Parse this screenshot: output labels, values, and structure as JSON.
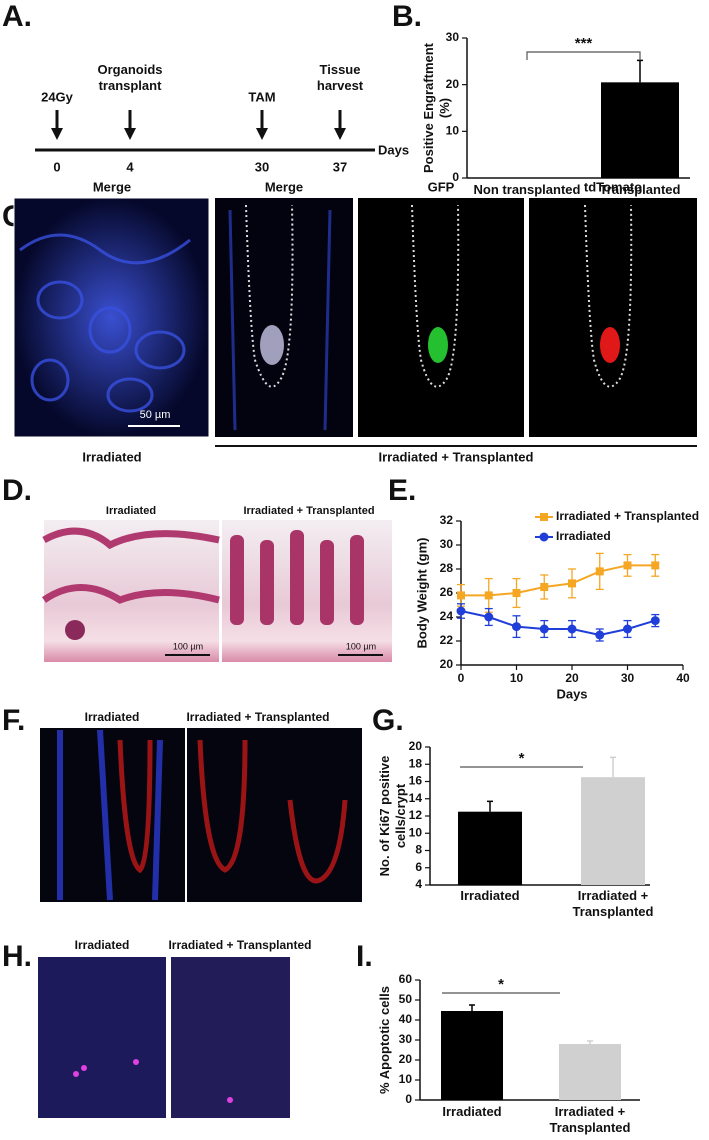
{
  "panel_labels": [
    "A.",
    "B.",
    "C.",
    "D.",
    "E.",
    "F.",
    "G.",
    "H.",
    "I."
  ],
  "timeline": {
    "events": [
      {
        "label": "24Gy",
        "day": 0
      },
      {
        "label": "Organoids transplant",
        "day": 4
      },
      {
        "label": "TAM",
        "day": 30
      },
      {
        "label": "Tissue harvest",
        "day": 37
      }
    ],
    "axis_label": "Days"
  },
  "panel_c": {
    "titles": [
      "Merge",
      "Merge",
      "GFP",
      "tdTomato"
    ],
    "scale_bar": "50 µm",
    "groups": [
      "Irradiated",
      "Irradiated + Transplanted"
    ]
  },
  "panel_d": {
    "titles": [
      "Irradiated",
      "Irradiated + Transplanted"
    ],
    "scale_bars": [
      "100 µm",
      "100 µm"
    ]
  },
  "panel_f": {
    "titles": [
      "Irradiated",
      "Irradiated + Transplanted"
    ]
  },
  "panel_h": {
    "titles": [
      "Irradiated",
      "Irradiated + Transplanted"
    ]
  },
  "chart_data": [
    {
      "type": "bar",
      "ylabel": "Positive Engraftment (%)",
      "categories": [
        "Non transplanted",
        "Transplanted"
      ],
      "values": [
        0,
        20.5
      ],
      "errors": [
        null,
        4.7
      ],
      "colors": [
        "#000000",
        "#000000"
      ],
      "ylim": [
        0,
        30
      ],
      "yticks": [
        0,
        10,
        20,
        30
      ],
      "annotation": "***"
    },
    {
      "type": "line",
      "ylabel": "Body Weight (gm)",
      "xlabel": "Days",
      "x": [
        0,
        5,
        10,
        15,
        20,
        25,
        30,
        35
      ],
      "series": [
        {
          "name": "Irradiated + Transplanted",
          "color": "#f5a623",
          "marker": "square",
          "values": [
            25.8,
            25.8,
            26.0,
            26.5,
            26.8,
            27.8,
            28.3,
            28.3
          ],
          "errors": [
            0.9,
            1.4,
            1.2,
            1.0,
            1.2,
            1.5,
            0.9,
            0.9
          ]
        },
        {
          "name": "Irradiated",
          "color": "#1f3fd8",
          "marker": "circle",
          "values": [
            24.5,
            24.0,
            23.2,
            23.0,
            23.0,
            22.5,
            23.0,
            23.7
          ],
          "errors": [
            0.6,
            0.7,
            0.9,
            0.7,
            0.7,
            0.5,
            0.7,
            0.5
          ]
        }
      ],
      "xlim": [
        0,
        40
      ],
      "xticks": [
        0,
        10,
        20,
        30,
        40
      ],
      "ylim": [
        20,
        32
      ],
      "yticks": [
        20,
        22,
        24,
        26,
        28,
        30,
        32
      ]
    },
    {
      "type": "bar",
      "ylabel": "No. of Ki67 positive cells/crypt",
      "categories": [
        "Irradiated",
        "Irradiated + Transplanted"
      ],
      "values": [
        12.5,
        16.5
      ],
      "errors": [
        1.2,
        2.3
      ],
      "colors": [
        "#000000",
        "#d0d0d0"
      ],
      "ylim": [
        4,
        20
      ],
      "yticks": [
        4,
        6,
        8,
        10,
        12,
        14,
        16,
        18,
        20
      ],
      "annotation": "*"
    },
    {
      "type": "bar",
      "ylabel": "% Apoptotic cells",
      "categories": [
        "Irradiated",
        "Irradiated + Transplanted"
      ],
      "values": [
        44.5,
        28
      ],
      "errors": [
        3,
        1.5
      ],
      "colors": [
        "#000000",
        "#d0d0d0"
      ],
      "ylim": [
        0,
        60
      ],
      "yticks": [
        0,
        10,
        20,
        30,
        40,
        50,
        60
      ],
      "annotation": "*"
    }
  ]
}
